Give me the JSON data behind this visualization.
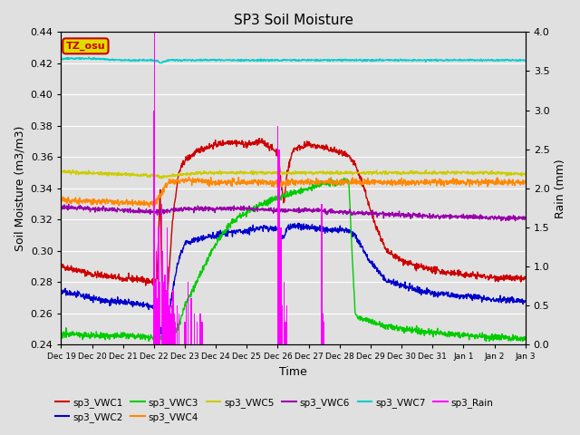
{
  "title": "SP3 Soil Moisture",
  "ylabel_left": "Soil Moisture (m3/m3)",
  "ylabel_right": "Rain (mm)",
  "xlabel": "Time",
  "ylim_left": [
    0.24,
    0.44
  ],
  "ylim_right": [
    0.0,
    4.0
  ],
  "yticks_left": [
    0.24,
    0.26,
    0.28,
    0.3,
    0.32,
    0.34,
    0.36,
    0.38,
    0.4,
    0.42,
    0.44
  ],
  "yticks_right": [
    0.0,
    0.5,
    1.0,
    1.5,
    2.0,
    2.5,
    3.0,
    3.5,
    4.0
  ],
  "xtick_labels": [
    "Dec 19",
    "Dec 20",
    "Dec 21",
    "Dec 22",
    "Dec 23",
    "Dec 24",
    "Dec 25",
    "Dec 26",
    "Dec 27",
    "Dec 28",
    "Dec 29",
    "Dec 30",
    "Dec 31",
    "Jan 1",
    "Jan 2",
    "Jan 3"
  ],
  "colors": {
    "sp3_VWC1": "#cc0000",
    "sp3_VWC2": "#0000cc",
    "sp3_VWC3": "#00cc00",
    "sp3_VWC4": "#ff8800",
    "sp3_VWC5": "#cccc00",
    "sp3_VWC6": "#9900aa",
    "sp3_VWC7": "#00cccc",
    "sp3_Rain": "#ff00ff"
  },
  "background_color": "#e0e0e0",
  "grid_color": "#ffffff",
  "label_box": "TZ_osu"
}
